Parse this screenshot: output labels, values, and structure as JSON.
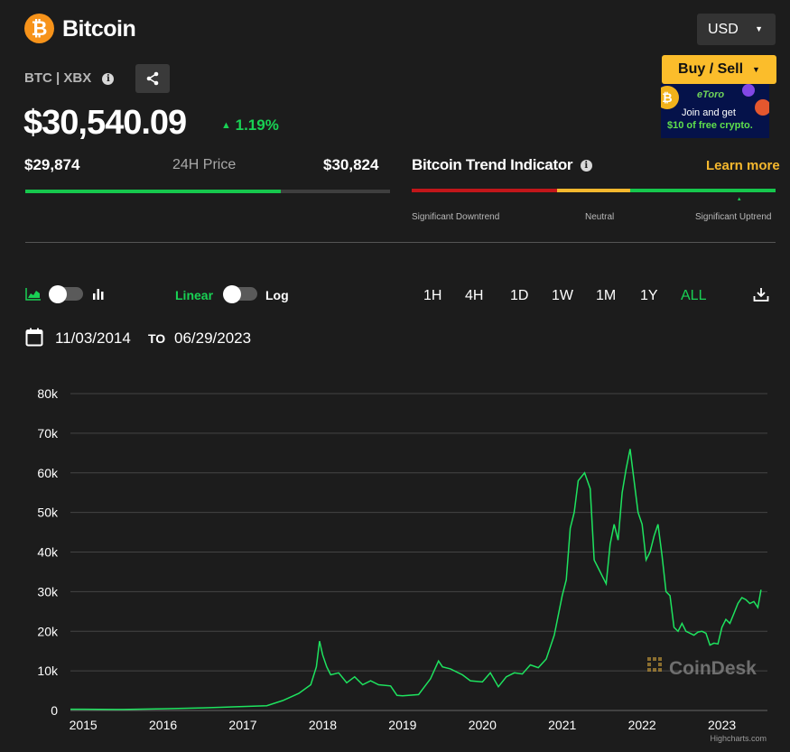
{
  "header": {
    "coin_symbol_glyph": "₿",
    "title": "Bitcoin",
    "ticker": "BTC | XBX",
    "info_glyph": "i"
  },
  "price": {
    "current": "$30,540.09",
    "change": "1.19%",
    "change_color": "#19d154"
  },
  "range_24h": {
    "low": "$29,874",
    "label": "24H Price",
    "high": "$30,824",
    "fill_fraction": 0.7
  },
  "currency": {
    "selected": "USD"
  },
  "actions": {
    "buy_sell": "Buy / Sell"
  },
  "ad": {
    "brand": "eToro",
    "line1": "Join and get",
    "line2": "$10 of free crypto."
  },
  "trend": {
    "title": "Bitcoin Trend Indicator",
    "learn_more": "Learn more",
    "labels": [
      "Significant Downtrend",
      "Neutral",
      "Significant Uptrend"
    ],
    "segment_colors": [
      "#c2161a",
      "#c2161a",
      "#f5b82e",
      "#16c74d",
      "#16c74d"
    ],
    "indicator_segment": 4
  },
  "chart_controls": {
    "linear": "Linear",
    "log": "Log",
    "timeframes": [
      "1H",
      "4H",
      "1D",
      "1W",
      "1M",
      "1Y",
      "ALL"
    ],
    "active_timeframe": "ALL",
    "date_from": "11/03/2014",
    "to_label": "TO",
    "date_to": "06/29/2023"
  },
  "watermark": "CoinDesk",
  "credit": "Highcharts.com",
  "chart_data": {
    "type": "line",
    "ylim": [
      0,
      80000
    ],
    "yticks": [
      0,
      10000,
      20000,
      30000,
      40000,
      50000,
      60000,
      70000,
      80000
    ],
    "ytick_labels": [
      "0",
      "10k",
      "20k",
      "30k",
      "40k",
      "50k",
      "60k",
      "70k",
      "80k"
    ],
    "xticks": [
      2015,
      2016,
      2017,
      2018,
      2019,
      2020,
      2021,
      2022,
      2023
    ],
    "xlim": [
      2014.84,
      2023.57
    ],
    "line_color": "#1ee35f",
    "grid": true,
    "series": [
      {
        "x": [
          2014.84,
          2015.0,
          2015.5,
          2016.0,
          2016.5,
          2017.0,
          2017.3,
          2017.5,
          2017.7,
          2017.85,
          2017.92,
          2017.96,
          2018.0,
          2018.05,
          2018.1,
          2018.2,
          2018.3,
          2018.4,
          2018.5,
          2018.6,
          2018.7,
          2018.85,
          2018.93,
          2019.0,
          2019.2,
          2019.35,
          2019.45,
          2019.5,
          2019.6,
          2019.75,
          2019.85,
          2020.0,
          2020.1,
          2020.2,
          2020.3,
          2020.4,
          2020.5,
          2020.6,
          2020.7,
          2020.8,
          2020.9,
          2021.0,
          2021.05,
          2021.1,
          2021.15,
          2021.2,
          2021.28,
          2021.35,
          2021.4,
          2021.45,
          2021.5,
          2021.55,
          2021.6,
          2021.65,
          2021.7,
          2021.75,
          2021.8,
          2021.85,
          2021.9,
          2021.95,
          2022.0,
          2022.05,
          2022.1,
          2022.15,
          2022.2,
          2022.25,
          2022.3,
          2022.35,
          2022.4,
          2022.45,
          2022.5,
          2022.55,
          2022.6,
          2022.65,
          2022.7,
          2022.75,
          2022.8,
          2022.85,
          2022.9,
          2022.95,
          2023.0,
          2023.05,
          2023.1,
          2023.15,
          2023.2,
          2023.25,
          2023.3,
          2023.35,
          2023.4,
          2023.45,
          2023.49
        ],
        "y": [
          330,
          315,
          260,
          430,
          650,
          1000,
          1200,
          2500,
          4300,
          6500,
          11000,
          17500,
          14000,
          11000,
          9000,
          9500,
          7000,
          8500,
          6500,
          7500,
          6500,
          6200,
          3800,
          3700,
          4000,
          8000,
          12500,
          11000,
          10500,
          9000,
          7500,
          7200,
          9500,
          6000,
          8500,
          9500,
          9200,
          11500,
          10800,
          13000,
          19000,
          29000,
          33000,
          46000,
          50000,
          58000,
          60000,
          56000,
          38000,
          36000,
          34000,
          32000,
          42000,
          47000,
          43000,
          55000,
          61000,
          66000,
          58000,
          50000,
          47000,
          38000,
          40000,
          44000,
          47000,
          39000,
          30000,
          29000,
          21000,
          20000,
          22000,
          20000,
          19500,
          19000,
          19800,
          20000,
          19500,
          16500,
          17000,
          16800,
          21000,
          23000,
          22000,
          24500,
          27000,
          28500,
          28000,
          27000,
          27500,
          26000,
          30500
        ]
      }
    ]
  }
}
